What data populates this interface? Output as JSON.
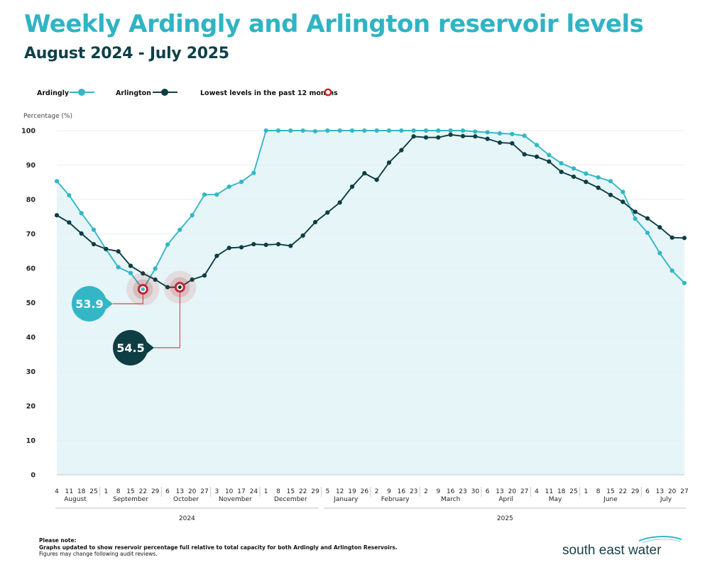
{
  "page": {
    "title": "Weekly Ardingly and Arlington reservoir levels",
    "subtitle": "August 2024 - July 2025"
  },
  "colors": {
    "ardingly": "#33b7c6",
    "arlington": "#0e3d44",
    "fill": "#e6f5f7",
    "lowest_marker": "#c0272d",
    "title": "#2fb4c4",
    "subtitle": "#0f4048"
  },
  "legend": {
    "ardingly": "Ardingly",
    "arlington": "Arlington",
    "lowest": "Lowest levels in the past 12 months"
  },
  "callouts": {
    "ardingly_low": "53.9",
    "arlington_low": "54.5"
  },
  "note": {
    "heading": "Please note:",
    "line1": "Graphs updated to show reservoir percentage full relative to total capacity for both Ardingly and Arlington Reservoirs.",
    "line2": "Figures may change following audit reviews."
  },
  "logo": {
    "text": "south east water"
  },
  "chart_data": {
    "type": "line",
    "title": "Weekly Ardingly and Arlington reservoir levels",
    "subtitle": "August 2024 - July 2025",
    "ylabel": "Percentage (%)",
    "xlabel": "",
    "ylim": [
      0,
      100
    ],
    "yticks": [
      0,
      10,
      20,
      30,
      40,
      50,
      60,
      70,
      80,
      90,
      100
    ],
    "grid": true,
    "legend_position": "top-left",
    "x": [
      "4",
      "11",
      "18",
      "25",
      "1",
      "8",
      "15",
      "22",
      "29",
      "6",
      "13",
      "20",
      "27",
      "3",
      "10",
      "17",
      "24",
      "1",
      "8",
      "15",
      "22",
      "29",
      "5",
      "12",
      "19",
      "26",
      "2",
      "9",
      "16",
      "23",
      "2",
      "9",
      "16",
      "23",
      "30",
      "6",
      "13",
      "20",
      "27",
      "4",
      "11",
      "18",
      "25",
      "1",
      "8",
      "15",
      "22",
      "29",
      "6",
      "13",
      "20",
      "27"
    ],
    "months": [
      {
        "label": "August",
        "start": 0,
        "end": 3
      },
      {
        "label": "September",
        "start": 4,
        "end": 8
      },
      {
        "label": "October",
        "start": 9,
        "end": 12
      },
      {
        "label": "November",
        "start": 13,
        "end": 16
      },
      {
        "label": "December",
        "start": 17,
        "end": 21
      },
      {
        "label": "January",
        "start": 22,
        "end": 25
      },
      {
        "label": "February",
        "start": 26,
        "end": 29
      },
      {
        "label": "March",
        "start": 30,
        "end": 34
      },
      {
        "label": "April",
        "start": 35,
        "end": 38
      },
      {
        "label": "May",
        "start": 39,
        "end": 42
      },
      {
        "label": "June",
        "start": 43,
        "end": 47
      },
      {
        "label": "July",
        "start": 48,
        "end": 51
      }
    ],
    "years": [
      {
        "label": "2024",
        "start": 0,
        "end": 21
      },
      {
        "label": "2025",
        "start": 22,
        "end": 51
      }
    ],
    "series": [
      {
        "name": "Ardingly",
        "values": [
          85.3,
          81.2,
          76.0,
          71.2,
          65.5,
          60.3,
          58.6,
          53.9,
          59.9,
          66.9,
          71.2,
          75.4,
          81.4,
          81.4,
          83.7,
          85.1,
          87.7,
          100,
          100,
          100,
          100,
          99.8,
          100,
          100,
          100,
          100,
          100,
          100,
          100,
          100,
          100,
          100,
          100,
          100,
          99.7,
          99.5,
          99.2,
          99.0,
          98.5,
          95.8,
          92.9,
          90.5,
          89.0,
          87.5,
          86.4,
          85.3,
          82.2,
          74.4,
          70.3,
          64.4,
          59.3,
          55.7
        ]
      },
      {
        "name": "Arlington",
        "values": [
          75.4,
          73.3,
          70.1,
          67.0,
          65.6,
          64.9,
          60.7,
          58.5,
          56.7,
          54.5,
          54.5,
          56.7,
          57.9,
          63.6,
          65.9,
          66.1,
          67.0,
          66.8,
          67.0,
          66.5,
          69.5,
          73.4,
          76.2,
          79.1,
          83.7,
          87.6,
          85.7,
          90.7,
          94.3,
          98.3,
          98.0,
          98.0,
          98.8,
          98.4,
          98.3,
          97.6,
          96.5,
          96.3,
          93.1,
          92.4,
          91.0,
          88.0,
          86.6,
          85.1,
          83.4,
          81.3,
          79.3,
          76.4,
          74.5,
          71.9,
          68.9,
          68.8
        ]
      }
    ],
    "lowest_points": [
      {
        "series": "Ardingly",
        "index": 7,
        "value": 53.9
      },
      {
        "series": "Arlington",
        "index": 10,
        "value": 54.5
      }
    ]
  }
}
